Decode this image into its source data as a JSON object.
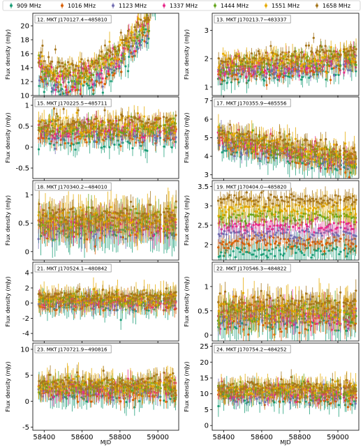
{
  "legend": [
    {
      "label": "909 MHz",
      "color": "#1b9e77"
    },
    {
      "label": "1016 MHz",
      "color": "#d95f02"
    },
    {
      "label": "1123 MHz",
      "color": "#7570b3"
    },
    {
      "label": "1337 MHz",
      "color": "#e7298a"
    },
    {
      "label": "1444 MHz",
      "color": "#66a61e"
    },
    {
      "label": "1551 MHz",
      "color": "#e6ab02"
    },
    {
      "label": "1658 MHz",
      "color": "#a6761d"
    }
  ],
  "chart_data": [
    {
      "type": "scatter",
      "title": "12. MKT J170127.4−485810",
      "ylabel": "Flux density (mJy)",
      "xlabel": "",
      "xlim": [
        58340,
        59110
      ],
      "ylim": [
        10,
        21.8
      ],
      "xticks": [
        58400,
        58600,
        58800,
        59000
      ],
      "yticks": [
        10,
        12,
        14,
        16,
        18,
        20
      ],
      "base": 13.5,
      "noise": 0.9,
      "err": 0.8,
      "shape": "dip",
      "grid": false
    },
    {
      "type": "scatter",
      "title": "13. MKT J170213.7−483337",
      "ylabel": "Flux density (mJy)",
      "xlabel": "",
      "xlim": [
        58340,
        59110
      ],
      "ylim": [
        0.7,
        3.6
      ],
      "xticks": [
        58400,
        58600,
        58800,
        59000
      ],
      "yticks": [
        1,
        2,
        3
      ],
      "base": 1.6,
      "noise": 0.18,
      "err": 0.2,
      "shape": "rise",
      "grid": false
    },
    {
      "type": "scatter",
      "title": "15. MKT J170225.5−485711",
      "ylabel": "Flux density (mJy)",
      "xlabel": "",
      "xlim": [
        58340,
        59110
      ],
      "ylim": [
        -0.75,
        1.2
      ],
      "xticks": [
        58400,
        58600,
        58800,
        59000
      ],
      "yticks": [
        -0.5,
        0.0,
        0.5,
        1.0
      ],
      "base": 0.4,
      "noise": 0.12,
      "err": 0.15,
      "shape": "flat",
      "grid": false
    },
    {
      "type": "scatter",
      "title": "17. MKT J170355.9−485556",
      "ylabel": "Flux density (mJy)",
      "xlabel": "",
      "xlim": [
        58340,
        59110
      ],
      "ylim": [
        2.8,
        7.2
      ],
      "xticks": [
        58400,
        58600,
        58800,
        59000
      ],
      "yticks": [
        3,
        4,
        5,
        6,
        7
      ],
      "base": 5.0,
      "noise": 0.25,
      "err": 0.4,
      "shape": "decline",
      "grid": false
    },
    {
      "type": "scatter",
      "title": "18. MKT J170340.2−484010",
      "ylabel": "Flux density (mJy)",
      "xlabel": "",
      "xlim": [
        58340,
        59110
      ],
      "ylim": [
        -0.15,
        1.25
      ],
      "xticks": [
        58400,
        58600,
        58800,
        59000
      ],
      "yticks": [
        0.0,
        0.5,
        1.0
      ],
      "base": 0.5,
      "noise": 0.1,
      "err": 0.2,
      "shape": "flat",
      "grid": false
    },
    {
      "type": "scatter",
      "title": "19. MKT J170404.0−485820",
      "ylabel": "Flux density (mJy)",
      "xlabel": "",
      "xlim": [
        58340,
        59110
      ],
      "ylim": [
        1.6,
        3.65
      ],
      "xticks": [
        58400,
        58600,
        58800,
        59000
      ],
      "yticks": [
        1.5,
        2.0,
        2.5,
        3.0,
        3.5
      ],
      "base": 2.5,
      "noise": 0.08,
      "err": 0.2,
      "shape": "spread",
      "grid": false
    },
    {
      "type": "scatter",
      "title": "21. MKT J170524.1−480842",
      "ylabel": "Flux density (mJy)",
      "xlabel": "",
      "xlim": [
        58340,
        59110
      ],
      "ylim": [
        -5,
        5.4
      ],
      "xticks": [
        58400,
        58600,
        58800,
        59000
      ],
      "yticks": [
        -4,
        -2,
        0,
        2,
        4
      ],
      "base": 0.3,
      "noise": 0.4,
      "err": 0.9,
      "shape": "flat",
      "grid": false
    },
    {
      "type": "scatter",
      "title": "22. MKT J170546.3−484822",
      "ylabel": "Flux density (mJy)",
      "xlabel": "",
      "xlim": [
        58340,
        59110
      ],
      "ylim": [
        -0.12,
        1.5
      ],
      "xticks": [
        58400,
        58600,
        58800,
        59000
      ],
      "yticks": [
        0.0,
        0.5,
        1.0
      ],
      "base": 0.45,
      "noise": 0.12,
      "err": 0.2,
      "shape": "flat",
      "grid": false
    },
    {
      "type": "scatter",
      "title": "23. MKT J170721.9−490816",
      "ylabel": "Flux density (mJy)",
      "xlabel": "MJD",
      "xlim": [
        58340,
        59110
      ],
      "ylim": [
        -5.6,
        11.2
      ],
      "xticks": [
        58400,
        58600,
        58800,
        59000
      ],
      "yticks": [
        -5,
        0,
        5,
        10
      ],
      "base": 2.5,
      "noise": 0.8,
      "err": 1.5,
      "shape": "flat",
      "grid": false
    },
    {
      "type": "scatter",
      "title": "24. MKT J170754.2−484252",
      "ylabel": "Flux density (mJy)",
      "xlabel": "MJD",
      "xlim": [
        58340,
        59110
      ],
      "ylim": [
        -1.5,
        26
      ],
      "xticks": [
        58400,
        58600,
        58800,
        59000
      ],
      "yticks": [
        0,
        5,
        10,
        15,
        20,
        25
      ],
      "base": 10.5,
      "noise": 1.2,
      "err": 2.0,
      "shape": "flat",
      "grid": false
    }
  ]
}
